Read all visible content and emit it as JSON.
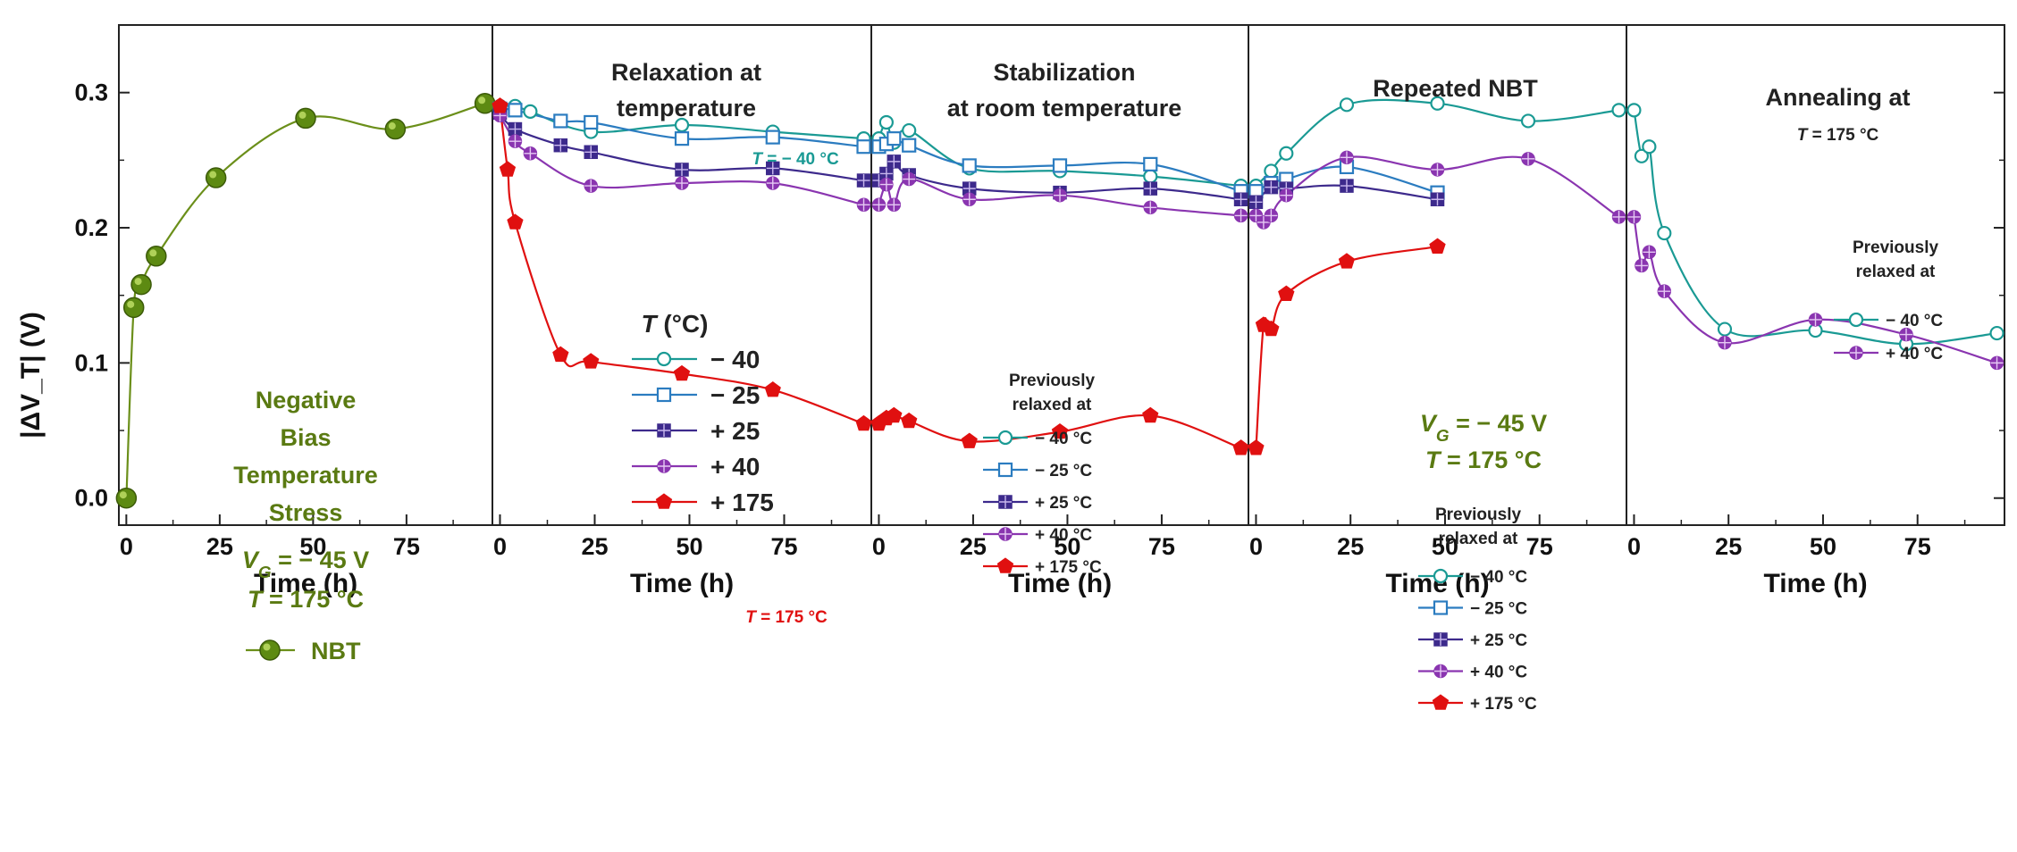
{
  "chart_data": {
    "type": "line",
    "title": "",
    "ylabel": "|ΔV_T| (V)",
    "ylim": [
      -0.02,
      0.35
    ],
    "yticks": [
      "0.0",
      "0.1",
      "0.2",
      "0.3"
    ],
    "xlabel": "Time (h)",
    "colors": {
      "m40": "#1a9a94",
      "m25": "#2b7cc0",
      "p25": "#3d2a8c",
      "p40": "#8a35b0",
      "p175": "#e01010",
      "nbt": "#6b8f1a"
    },
    "panels": [
      {
        "id": "p1",
        "title": [
          "",
          ""
        ],
        "xlim": [
          -2,
          98
        ],
        "xticks": [
          "0",
          "25",
          "50",
          "75"
        ],
        "series": [
          {
            "name": "NBT",
            "color": "nbt",
            "marker": "ball",
            "x": [
              0,
              2,
              4,
              8,
              24,
              48,
              72,
              96
            ],
            "y": [
              0.0,
              0.141,
              0.158,
              0.179,
              0.237,
              0.281,
              0.273,
              0.292
            ]
          }
        ],
        "notes": {
          "stress": [
            "Negative",
            "Bias",
            "Temperature",
            "Stress"
          ],
          "vg_label": "V",
          "vg_sub": "G",
          "vg_value": " = − 45 V",
          "t_label": "T",
          "t_value": " = 175 °C",
          "legend": "NBT"
        }
      },
      {
        "id": "p2",
        "title": [
          "Relaxation at",
          "temperature"
        ],
        "xlim": [
          -2,
          98
        ],
        "xticks": [
          "0",
          "25",
          "50",
          "75"
        ],
        "series": [
          {
            "name": "− 40",
            "color": "m40",
            "marker": "circle",
            "x": [
              0,
              4,
              8,
              24,
              48,
              72,
              96
            ],
            "y": [
              0.29,
              0.29,
              0.286,
              0.271,
              0.276,
              0.271,
              0.266
            ]
          },
          {
            "name": "− 25",
            "color": "m25",
            "marker": "square",
            "x": [
              0,
              4,
              16,
              24,
              48,
              72,
              96
            ],
            "y": [
              0.288,
              0.287,
              0.279,
              0.278,
              0.266,
              0.267,
              0.26
            ]
          },
          {
            "name": "+ 25",
            "color": "p25",
            "marker": "sqcross",
            "x": [
              0,
              4,
              16,
              24,
              48,
              72,
              96
            ],
            "y": [
              0.285,
              0.273,
              0.261,
              0.256,
              0.243,
              0.244,
              0.235
            ]
          },
          {
            "name": "+ 40",
            "color": "p40",
            "marker": "circcross",
            "x": [
              0,
              4,
              8,
              24,
              48,
              72,
              96
            ],
            "y": [
              0.283,
              0.264,
              0.255,
              0.231,
              0.233,
              0.233,
              0.217
            ]
          },
          {
            "name": "+ 175",
            "color": "p175",
            "marker": "pentagon",
            "x": [
              0,
              2,
              4,
              16,
              24,
              48,
              72,
              96
            ],
            "y": [
              0.29,
              0.243,
              0.204,
              0.106,
              0.101,
              0.092,
              0.08,
              0.055
            ]
          }
        ],
        "legend_title": "T (°C)",
        "labels": {
          "T40": "T = − 40 °C",
          "T175": "T = 175 °C"
        }
      },
      {
        "id": "p3",
        "title": [
          "Stabilization",
          "at room temperature"
        ],
        "xlim": [
          -2,
          98
        ],
        "xticks": [
          "0",
          "25",
          "50",
          "75"
        ],
        "series": [
          {
            "name": "− 40 °C",
            "color": "m40",
            "marker": "circle",
            "x": [
              0,
              2,
              4,
              8,
              24,
              48,
              72,
              96
            ],
            "y": [
              0.266,
              0.278,
              0.263,
              0.272,
              0.244,
              0.242,
              0.238,
              0.231
            ]
          },
          {
            "name": "− 25 °C",
            "color": "m25",
            "marker": "square",
            "x": [
              0,
              2,
              4,
              8,
              24,
              48,
              72,
              96
            ],
            "y": [
              0.26,
              0.262,
              0.266,
              0.261,
              0.246,
              0.246,
              0.247,
              0.227
            ]
          },
          {
            "name": "+ 25 °C",
            "color": "p25",
            "marker": "sqcross",
            "x": [
              0,
              2,
              4,
              8,
              24,
              48,
              72,
              96
            ],
            "y": [
              0.235,
              0.24,
              0.249,
              0.239,
              0.229,
              0.226,
              0.229,
              0.221
            ]
          },
          {
            "name": "+ 40 °C",
            "color": "p40",
            "marker": "circcross",
            "x": [
              0,
              2,
              4,
              8,
              24,
              48,
              72,
              96
            ],
            "y": [
              0.217,
              0.232,
              0.217,
              0.236,
              0.221,
              0.224,
              0.215,
              0.209
            ]
          },
          {
            "name": "+ 175  °C",
            "color": "p175",
            "marker": "pentagon",
            "x": [
              0,
              2,
              4,
              8,
              24,
              48,
              72,
              96
            ],
            "y": [
              0.055,
              0.059,
              0.061,
              0.057,
              0.042,
              0.049,
              0.061,
              0.037
            ]
          }
        ],
        "legend_title": [
          "Previously",
          "relaxed at"
        ]
      },
      {
        "id": "p4",
        "title": [
          "Repeated NBT",
          ""
        ],
        "xlim": [
          -2,
          98
        ],
        "xticks": [
          "0",
          "25",
          "50",
          "75"
        ],
        "series": [
          {
            "name": "− 40 °C",
            "color": "m40",
            "marker": "circle",
            "x": [
              0,
              4,
              8,
              24,
              48,
              72,
              96
            ],
            "y": [
              0.231,
              0.242,
              0.255,
              0.291,
              0.292,
              0.279,
              0.287
            ]
          },
          {
            "name": "− 25 °C",
            "color": "m25",
            "marker": "square",
            "x": [
              0,
              4,
              8,
              24,
              48
            ],
            "y": [
              0.227,
              0.233,
              0.236,
              0.245,
              0.226
            ]
          },
          {
            "name": "+ 25 °C",
            "color": "p25",
            "marker": "sqcross",
            "x": [
              0,
              4,
              8,
              24,
              48
            ],
            "y": [
              0.219,
              0.23,
              0.229,
              0.231,
              0.221
            ]
          },
          {
            "name": "+ 40 °C",
            "color": "p40",
            "marker": "circcross",
            "x": [
              0,
              2,
              4,
              8,
              24,
              48,
              72,
              96
            ],
            "y": [
              0.209,
              0.204,
              0.209,
              0.224,
              0.252,
              0.243,
              0.251,
              0.208
            ]
          },
          {
            "name": "+ 175 °C",
            "color": "p175",
            "marker": "pentagon",
            "x": [
              0,
              2,
              4,
              8,
              24,
              48
            ],
            "y": [
              0.037,
              0.128,
              0.125,
              0.151,
              0.175,
              0.186
            ]
          }
        ],
        "notes": {
          "vg_label": "V",
          "vg_sub": "G",
          "vg_value": " = − 45 V",
          "t_label": "T",
          "t_value": " = 175 °C"
        },
        "legend_title": [
          "Previously",
          "relaxed at"
        ]
      },
      {
        "id": "p5",
        "title": [
          "Annealing at",
          "T = 175 °C"
        ],
        "xlim": [
          -2,
          98
        ],
        "xticks": [
          "0",
          "25",
          "50",
          "75"
        ],
        "series": [
          {
            "name": "− 40 °C",
            "color": "m40",
            "marker": "circle",
            "x": [
              0,
              2,
              4,
              8,
              24,
              48,
              72,
              96
            ],
            "y": [
              0.287,
              0.253,
              0.26,
              0.196,
              0.125,
              0.124,
              0.114,
              0.122
            ]
          },
          {
            "name": "+ 40 °C",
            "color": "p40",
            "marker": "circcross",
            "x": [
              0,
              2,
              4,
              8,
              24,
              48,
              72,
              96
            ],
            "y": [
              0.208,
              0.172,
              0.182,
              0.153,
              0.115,
              0.132,
              0.121,
              0.1
            ]
          }
        ],
        "legend_title": [
          "Previously",
          "relaxed at"
        ]
      }
    ]
  }
}
